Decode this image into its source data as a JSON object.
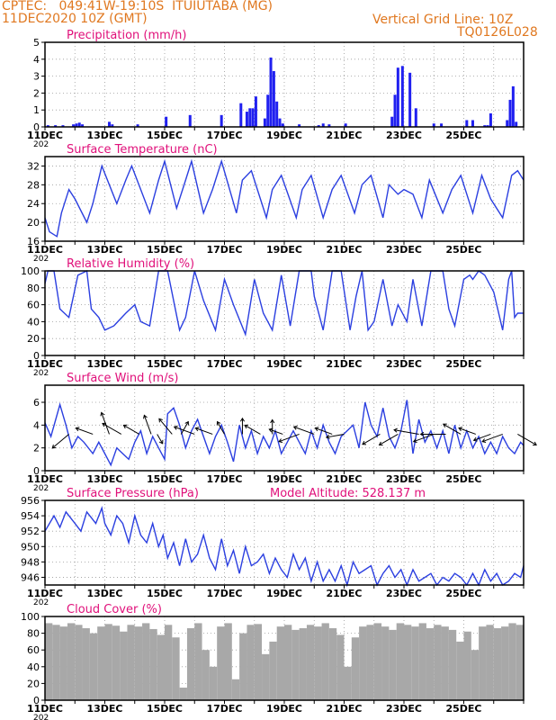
{
  "header": {
    "line1": "CPTEC:   049:41W-19:10S  ITUIUTABA (MG)",
    "line2": "11DEC2020 10Z (GMT)",
    "grid_note": "Vertical Grid Line: 10Z",
    "code": "TQ0126L028",
    "model_altitude": "Model Altitude: 528.137 m",
    "color": "#e07820",
    "title_color": "#e0107a",
    "series_color": "#2b3fe0",
    "bar_color": "#2020f0",
    "cloud_color": "#a8a8a8",
    "year_fragment": "202"
  },
  "chart_data": [
    {
      "type": "bar",
      "title": "Precipitation (mm/h)",
      "ylim": [
        0,
        5
      ],
      "yticks": [
        0,
        1,
        2,
        3,
        4,
        5
      ],
      "xticks": [
        "11DEC",
        "13DEC",
        "15DEC",
        "17DEC",
        "19DEC",
        "21DEC",
        "23DEC",
        "25DEC"
      ],
      "grid": true,
      "series": [
        {
          "x": [
            0.1,
            0.35,
            0.6,
            0.95,
            1.05,
            1.15,
            1.25,
            2.15,
            2.25,
            3.1,
            4.05,
            4.85,
            5.9,
            6.55,
            6.75,
            6.85,
            6.95,
            7.05,
            7.35,
            7.45,
            7.55,
            7.65,
            7.75,
            7.85,
            7.95,
            8.5,
            9.15,
            9.3,
            9.5,
            10.05,
            11.6,
            11.7,
            11.8,
            11.95,
            12.2,
            12.4,
            13.0,
            13.25,
            14.1,
            14.3,
            14.7,
            14.8,
            14.9,
            15.45,
            15.55,
            15.65,
            15.75
          ],
          "values": [
            0.1,
            0.1,
            0.1,
            0.15,
            0.2,
            0.25,
            0.15,
            0.3,
            0.15,
            0.15,
            0.6,
            0.7,
            0.7,
            1.4,
            0.9,
            1.1,
            1.1,
            1.8,
            0.5,
            1.9,
            4.1,
            3.3,
            1.5,
            0.5,
            0.2,
            0.15,
            0.1,
            0.2,
            0.15,
            0.2,
            0.6,
            1.9,
            3.5,
            3.6,
            3.2,
            1.1,
            0.2,
            0.2,
            0.4,
            0.4,
            0.1,
            0.1,
            0.8,
            0.4,
            1.6,
            2.4,
            0.3
          ]
        }
      ]
    },
    {
      "type": "line",
      "title": "Surface Temperature (nC)",
      "ylim": [
        16,
        34
      ],
      "yticks": [
        16,
        20,
        24,
        28,
        32
      ],
      "xticks": [
        "11DEC",
        "13DEC",
        "15DEC",
        "17DEC",
        "19DEC",
        "21DEC",
        "23DEC",
        "25DEC"
      ],
      "grid": true,
      "series": [
        {
          "x": [
            0,
            0.15,
            0.4,
            0.55,
            0.8,
            1.0,
            1.4,
            1.6,
            1.9,
            2.4,
            2.7,
            2.9,
            3.5,
            3.8,
            4.0,
            4.4,
            4.7,
            4.9,
            5.3,
            5.6,
            5.9,
            6.4,
            6.6,
            6.9,
            7.4,
            7.6,
            7.9,
            8.4,
            8.6,
            8.9,
            9.3,
            9.6,
            9.9,
            10.35,
            10.6,
            10.9,
            11.3,
            11.5,
            11.8,
            12.0,
            12.3,
            12.6,
            12.85,
            13.3,
            13.6,
            13.9,
            14.3,
            14.6,
            14.9,
            15.3,
            15.6,
            15.8,
            16.0
          ],
          "values": [
            21,
            18,
            17,
            22,
            27,
            25,
            20,
            24,
            32,
            24,
            29,
            32,
            22,
            29,
            33,
            23,
            29,
            33,
            22,
            27,
            33,
            22,
            29,
            31,
            21,
            27,
            30,
            21,
            27,
            30,
            21,
            27,
            30,
            22,
            28,
            30,
            21,
            28,
            26,
            27,
            26,
            21,
            29,
            22,
            27,
            30,
            22,
            30,
            25,
            21,
            30,
            31,
            29
          ]
        }
      ]
    },
    {
      "type": "line",
      "title": "Relative Humidity (%)",
      "ylim": [
        0,
        100
      ],
      "yticks": [
        0,
        20,
        40,
        60,
        80,
        100
      ],
      "xticks": [
        "11DEC",
        "13DEC",
        "15DEC",
        "17DEC",
        "19DEC",
        "21DEC",
        "23DEC",
        "25DEC"
      ],
      "grid": true,
      "series": [
        {
          "x": [
            0,
            0.1,
            0.3,
            0.5,
            0.8,
            1.1,
            1.4,
            1.55,
            1.8,
            2.0,
            2.3,
            2.7,
            3.0,
            3.2,
            3.5,
            3.8,
            4.1,
            4.5,
            4.7,
            5.0,
            5.3,
            5.7,
            6.0,
            6.3,
            6.7,
            7.0,
            7.3,
            7.6,
            7.9,
            8.2,
            8.5,
            8.7,
            8.9,
            9.0,
            9.3,
            9.6,
            9.9,
            10.2,
            10.4,
            10.6,
            10.8,
            11.0,
            11.3,
            11.6,
            11.8,
            12.1,
            12.3,
            12.6,
            12.9,
            13.3,
            13.5,
            13.7,
            14.0,
            14.2,
            14.3,
            14.5,
            14.7,
            15.0,
            15.3,
            15.5,
            15.6,
            15.7,
            15.8,
            16.0
          ],
          "values": [
            85,
            100,
            100,
            55,
            45,
            95,
            100,
            55,
            45,
            30,
            35,
            50,
            60,
            40,
            35,
            100,
            100,
            30,
            45,
            100,
            65,
            30,
            90,
            60,
            25,
            90,
            50,
            30,
            95,
            35,
            100,
            100,
            100,
            70,
            30,
            100,
            100,
            30,
            70,
            100,
            30,
            40,
            90,
            35,
            60,
            40,
            90,
            35,
            100,
            100,
            55,
            35,
            90,
            95,
            90,
            100,
            95,
            75,
            30,
            90,
            100,
            45,
            50,
            50
          ]
        }
      ]
    },
    {
      "type": "line",
      "title": "Surface Wind (m/s)",
      "ylim": [
        0,
        7.5
      ],
      "yticks": [
        0,
        2,
        4,
        6
      ],
      "xticks": [
        "11DEC",
        "13DEC",
        "15DEC",
        "17DEC",
        "19DEC",
        "21DEC",
        "23DEC",
        "25DEC"
      ],
      "grid": true,
      "series": [
        {
          "x": [
            0,
            0.2,
            0.5,
            0.7,
            0.9,
            1.1,
            1.3,
            1.6,
            1.8,
            2.0,
            2.2,
            2.4,
            2.6,
            2.8,
            3.0,
            3.2,
            3.4,
            3.6,
            3.8,
            4.0,
            4.1,
            4.3,
            4.5,
            4.7,
            4.9,
            5.1,
            5.3,
            5.5,
            5.7,
            5.9,
            6.1,
            6.3,
            6.5,
            6.7,
            6.9,
            7.1,
            7.3,
            7.5,
            7.7,
            7.9,
            8.1,
            8.3,
            8.5,
            8.7,
            8.9,
            9.1,
            9.3,
            9.5,
            9.7,
            9.9,
            10.1,
            10.3,
            10.5,
            10.7,
            10.9,
            11.1,
            11.3,
            11.5,
            11.7,
            11.9,
            12.1,
            12.3,
            12.5,
            12.7,
            12.9,
            13.1,
            13.3,
            13.5,
            13.7,
            13.9,
            14.1,
            14.3,
            14.5,
            14.7,
            14.9,
            15.1,
            15.3,
            15.5,
            15.7,
            15.9,
            16.0
          ],
          "values": [
            4.2,
            3.0,
            5.8,
            4.0,
            2.0,
            3.0,
            2.5,
            1.5,
            2.5,
            1.5,
            0.5,
            2.0,
            1.5,
            1.0,
            2.5,
            3.5,
            1.5,
            3.0,
            2.0,
            1.0,
            5.0,
            5.5,
            4.0,
            2.0,
            3.5,
            4.5,
            3.0,
            1.5,
            3.0,
            4.0,
            2.5,
            0.8,
            4.0,
            2.0,
            3.5,
            1.5,
            3.0,
            2.0,
            3.5,
            1.5,
            2.5,
            3.5,
            2.5,
            1.5,
            3.5,
            2.0,
            4.0,
            2.5,
            1.5,
            3.0,
            3.5,
            4.0,
            2.0,
            6.0,
            4.0,
            3.0,
            5.5,
            3.0,
            2.0,
            3.5,
            6.2,
            1.5,
            4.5,
            2.5,
            3.5,
            2.0,
            3.5,
            1.5,
            4.0,
            2.0,
            3.5,
            2.0,
            3.0,
            1.5,
            2.5,
            1.5,
            3.0,
            2.0,
            1.5,
            2.5,
            2.2
          ]
        }
      ],
      "wind_arrows": {
        "x": [
          0.8,
          1.6,
          2.15,
          2.55,
          3.15,
          3.55,
          3.75,
          4.25,
          4.55,
          5.0,
          5.6,
          6.0,
          6.6,
          7.2,
          7.6,
          7.95,
          8.5,
          9.0,
          9.6,
          10.0,
          11.2,
          11.8,
          12.5,
          13.0,
          13.4,
          13.9,
          14.4,
          14.9,
          15.3,
          15.8
        ],
        "dir_deg": [
          140,
          200,
          250,
          210,
          210,
          250,
          60,
          230,
          300,
          200,
          200,
          240,
          270,
          210,
          270,
          200,
          160,
          200,
          200,
          170,
          150,
          150,
          190,
          160,
          180,
          210,
          200,
          160,
          160,
          30
        ],
        "len": [
          3.0,
          2.5,
          3.2,
          3.0,
          2.5,
          2.8,
          1.5,
          2.8,
          2.0,
          3.0,
          2.5,
          2.0,
          2.2,
          2.5,
          2.0,
          2.0,
          3.0,
          3.0,
          2.5,
          2.5,
          2.8,
          3.0,
          3.5,
          3.0,
          3.5,
          2.8,
          2.5,
          2.5,
          3.0,
          3.0
        ]
      }
    },
    {
      "type": "line",
      "title": "Surface Pressure (hPa)",
      "ylim": [
        945,
        956
      ],
      "yticks": [
        946,
        948,
        950,
        952,
        954,
        956
      ],
      "xticks": [
        "11DEC",
        "13DEC",
        "15DEC",
        "17DEC",
        "19DEC",
        "21DEC",
        "23DEC",
        "25DEC"
      ],
      "grid": true,
      "series": [
        {
          "x": [
            0,
            0.3,
            0.5,
            0.7,
            1.0,
            1.2,
            1.4,
            1.7,
            1.9,
            2.0,
            2.2,
            2.4,
            2.6,
            2.8,
            3.0,
            3.2,
            3.4,
            3.6,
            3.8,
            3.95,
            4.1,
            4.3,
            4.5,
            4.7,
            4.9,
            5.1,
            5.3,
            5.5,
            5.7,
            5.9,
            6.1,
            6.3,
            6.5,
            6.7,
            6.9,
            7.1,
            7.3,
            7.5,
            7.7,
            7.9,
            8.1,
            8.3,
            8.5,
            8.7,
            8.9,
            9.1,
            9.3,
            9.5,
            9.7,
            9.9,
            10.1,
            10.3,
            10.5,
            10.7,
            10.9,
            11.1,
            11.3,
            11.5,
            11.7,
            11.9,
            12.1,
            12.3,
            12.5,
            12.7,
            12.9,
            13.1,
            13.3,
            13.5,
            13.7,
            13.9,
            14.1,
            14.3,
            14.5,
            14.7,
            14.9,
            15.1,
            15.3,
            15.5,
            15.7,
            15.9,
            16.0
          ],
          "values": [
            952,
            954,
            952.5,
            954.5,
            953,
            952,
            954.5,
            953,
            955,
            953,
            951.5,
            954,
            953,
            950.5,
            954,
            951.5,
            950.5,
            953,
            950,
            951.5,
            948.5,
            950.5,
            947.5,
            951,
            948,
            949,
            951.5,
            948.5,
            947,
            951,
            947.5,
            949.5,
            946.5,
            950,
            947.5,
            948,
            949,
            946.5,
            948.5,
            947,
            946,
            949,
            947,
            948.5,
            945.5,
            948,
            945.5,
            947,
            945.5,
            947.5,
            945,
            948,
            946.5,
            947,
            947.5,
            944.5,
            946.5,
            947.5,
            946,
            947,
            945,
            947,
            945.5,
            946,
            946.5,
            944.5,
            946,
            945.5,
            946.5,
            946,
            944.5,
            946.5,
            945,
            947,
            945.5,
            946.5,
            944.5,
            945.5,
            946.5,
            946,
            947.5
          ]
        }
      ]
    },
    {
      "type": "bar",
      "title": "Cloud Cover (%)",
      "ylim": [
        0,
        100
      ],
      "yticks": [
        0,
        20,
        40,
        60,
        80,
        100
      ],
      "xticks": [
        "11DEC",
        "13DEC",
        "15DEC",
        "17DEC",
        "19DEC",
        "21DEC",
        "23DEC",
        "25DEC"
      ],
      "grid": true,
      "series": [
        {
          "x": [
            0.0,
            0.25,
            0.5,
            0.75,
            1.0,
            1.25,
            1.5,
            1.75,
            2.0,
            2.25,
            2.5,
            2.75,
            3.0,
            3.25,
            3.5,
            3.75,
            4.0,
            4.25,
            4.5,
            4.75,
            5.0,
            5.25,
            5.5,
            5.75,
            6.0,
            6.25,
            6.5,
            6.75,
            7.0,
            7.25,
            7.5,
            7.75,
            8.0,
            8.25,
            8.5,
            8.75,
            9.0,
            9.25,
            9.5,
            9.75,
            10.0,
            10.25,
            10.5,
            10.75,
            11.0,
            11.25,
            11.5,
            11.75,
            12.0,
            12.25,
            12.5,
            12.75,
            13.0,
            13.25,
            13.5,
            13.75,
            14.0,
            14.25,
            14.5,
            14.75,
            15.0,
            15.25,
            15.5,
            15.75
          ],
          "values": [
            92,
            90,
            88,
            92,
            90,
            86,
            80,
            88,
            91,
            89,
            82,
            90,
            88,
            92,
            85,
            78,
            90,
            75,
            15,
            86,
            92,
            60,
            40,
            88,
            92,
            25,
            80,
            90,
            91,
            55,
            70,
            88,
            90,
            84,
            86,
            90,
            88,
            92,
            86,
            78,
            40,
            75,
            88,
            90,
            92,
            88,
            84,
            92,
            90,
            88,
            92,
            86,
            90,
            88,
            84,
            70,
            82,
            60,
            88,
            90,
            86,
            88,
            92,
            90
          ]
        }
      ]
    }
  ]
}
